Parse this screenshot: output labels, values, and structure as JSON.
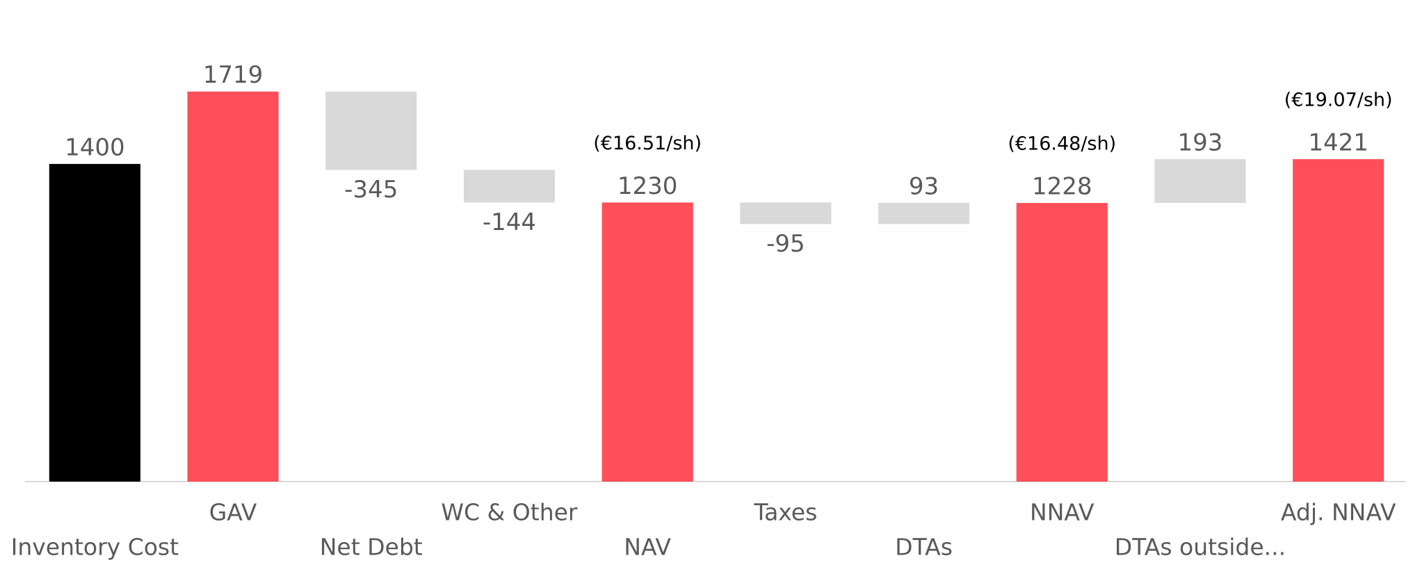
{
  "chart_data": {
    "type": "waterfall",
    "categories": [
      "Inventory Cost",
      "GAV",
      "Net Debt",
      "WC & Other",
      "NAV",
      "Taxes",
      "DTAs",
      "NNAV",
      "DTAs outside...",
      "Adj. NNAV"
    ],
    "values": [
      1400,
      1719,
      -345,
      -144,
      1230,
      -95,
      93,
      1228,
      193,
      1421
    ],
    "measure": [
      "absolute",
      "absolute",
      "relative",
      "relative",
      "total",
      "relative",
      "relative",
      "total",
      "relative",
      "total"
    ],
    "colors": [
      "#000000",
      "#ff4f5a",
      "#d9d9d9",
      "#d9d9d9",
      "#ff4f5a",
      "#d9d9d9",
      "#d9d9d9",
      "#ff4f5a",
      "#d9d9d9",
      "#ff4f5a"
    ],
    "value_annotations": [
      null,
      null,
      null,
      null,
      "(€16.51/sh)",
      null,
      null,
      "(€16.48/sh)",
      null,
      "(€19.07/sh)"
    ],
    "ylim": [
      0,
      2000
    ]
  }
}
